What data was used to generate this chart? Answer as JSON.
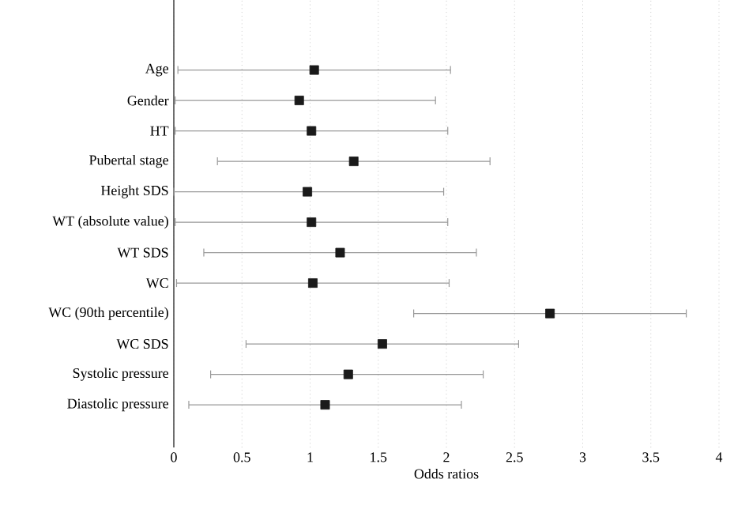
{
  "chart_data": {
    "type": "scatter",
    "orientation": "horizontal",
    "xlabel": "Odds ratios",
    "categories": [
      "Age",
      "Gender",
      "HT",
      "Pubertal stage",
      "Height SDS",
      "WT (absolute value)",
      "WT SDS",
      "WC",
      "WC (90th percentile)",
      "WC SDS",
      "Systolic pressure",
      "Diastolic pressure"
    ],
    "values": [
      1.03,
      0.92,
      1.01,
      1.32,
      0.98,
      1.01,
      1.22,
      1.02,
      2.76,
      1.53,
      1.28,
      1.11
    ],
    "errors": [
      [
        0.03,
        2.03
      ],
      [
        0.01,
        1.92
      ],
      [
        0.01,
        2.01
      ],
      [
        0.32,
        2.32
      ],
      [
        0.0,
        1.98
      ],
      [
        0.01,
        2.01
      ],
      [
        0.22,
        2.22
      ],
      [
        0.02,
        2.02
      ],
      [
        1.76,
        3.76
      ],
      [
        0.53,
        2.53
      ],
      [
        0.27,
        2.27
      ],
      [
        0.11,
        2.11
      ]
    ],
    "color": "#1a1a1a",
    "xlim": [
      0,
      4
    ],
    "xticks": [
      0,
      0.5,
      1,
      1.5,
      2,
      2.5,
      3,
      3.5,
      4
    ],
    "grid": "x",
    "marker": "square"
  }
}
